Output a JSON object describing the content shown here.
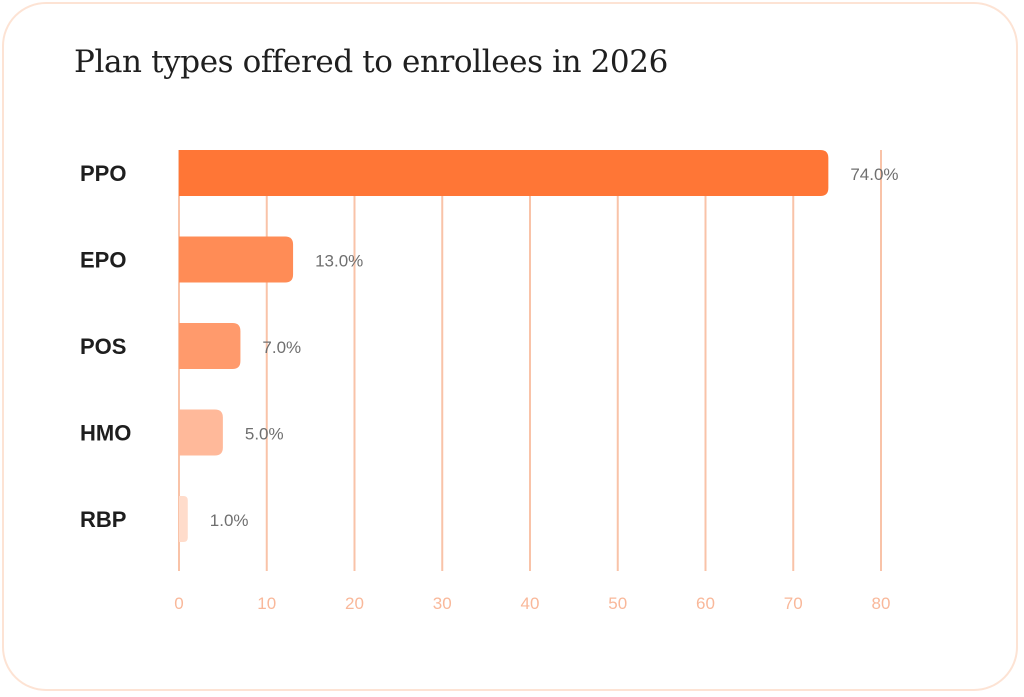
{
  "chart_data": {
    "type": "bar",
    "orientation": "horizontal",
    "title": "Plan types offered to enrollees in 2026",
    "categories": [
      "PPO",
      "EPO",
      "POS",
      "HMO",
      "RBP"
    ],
    "values": [
      74.0,
      13.0,
      7.0,
      5.0,
      1.0
    ],
    "value_labels": [
      "74.0%",
      "13.0%",
      "7.0%",
      "5.0%",
      "1.0%"
    ],
    "bar_colors": [
      "#ff7636",
      "#ff8c56",
      "#ff9a6c",
      "#ffb99a",
      "#ffdccb"
    ],
    "xlim": [
      0,
      80
    ],
    "x_ticks": [
      0,
      10,
      20,
      30,
      40,
      50,
      60,
      70,
      80
    ],
    "grid": "vertical",
    "legend": "none",
    "xlabel": "",
    "ylabel": ""
  },
  "colors": {
    "grid": "#f9c3a8",
    "card_border": "#fde3d4",
    "tick_text": "#f9b89a",
    "category_text": "#1e1e1e",
    "value_text": "#6f6f6f"
  }
}
